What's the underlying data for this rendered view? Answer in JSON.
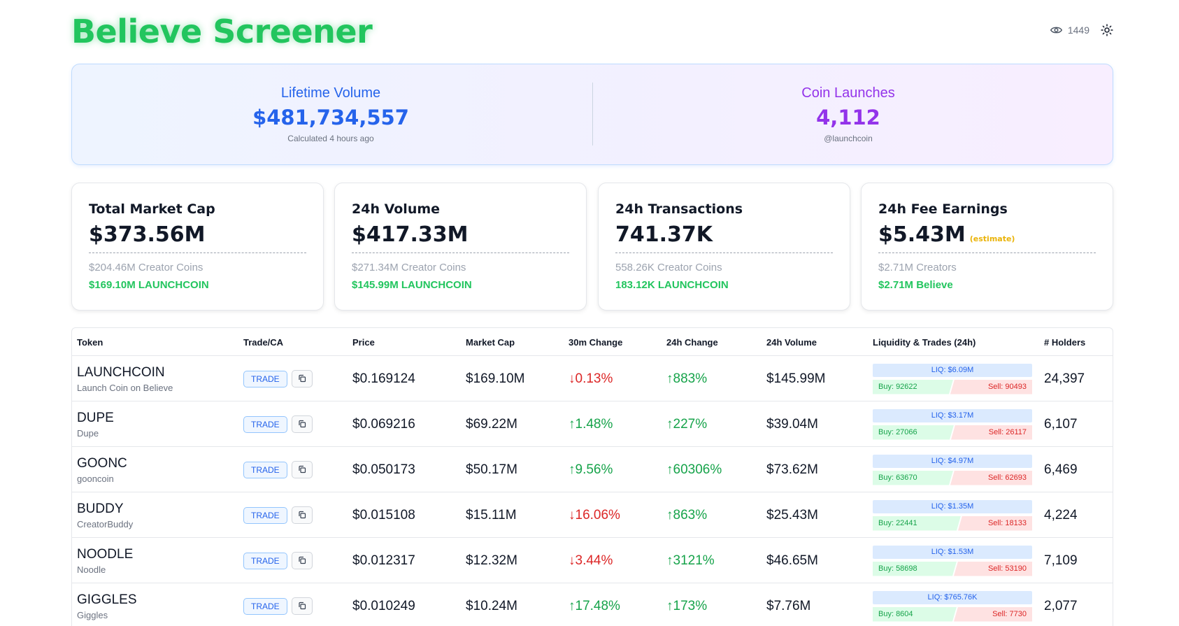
{
  "header": {
    "title": "Believe Screener",
    "view_count": "1449",
    "icons": [
      "eye-icon",
      "sun-icon"
    ]
  },
  "hero": {
    "lifetime_volume": {
      "label": "Lifetime Volume",
      "value": "$481,734,557",
      "sub": "Calculated 4 hours ago"
    },
    "coin_launches": {
      "label": "Coin Launches",
      "value": "4,112",
      "sub": "@launchcoin"
    }
  },
  "cards": [
    {
      "title": "Total Market Cap",
      "value": "$373.56M",
      "note": "",
      "sub1": "$204.46M Creator Coins",
      "sub2": "$169.10M LAUNCHCOIN"
    },
    {
      "title": "24h Volume",
      "value": "$417.33M",
      "note": "",
      "sub1": "$271.34M Creator Coins",
      "sub2": "$145.99M LAUNCHCOIN"
    },
    {
      "title": "24h Transactions",
      "value": "741.37K",
      "note": "",
      "sub1": "558.26K Creator Coins",
      "sub2": "183.12K LAUNCHCOIN"
    },
    {
      "title": "24h Fee Earnings",
      "value": "$5.43M",
      "note": "(estimate)",
      "sub1": "$2.71M Creators",
      "sub2": "$2.71M Believe"
    }
  ],
  "table": {
    "headers": {
      "token": "Token",
      "trade": "Trade/CA",
      "price": "Price",
      "mcap": "Market Cap",
      "ch30m": "30m Change",
      "ch24h": "24h Change",
      "vol24h": "24h Volume",
      "liq": "Liquidity & Trades (24h)",
      "holders": "# Holders"
    },
    "trade_label": "TRADE",
    "rows": [
      {
        "symbol": "LAUNCHCOIN",
        "name": "Launch Coin on Believe",
        "price": "$0.169124",
        "mcap": "$169.10M",
        "ch30m": "↓0.13%",
        "ch30m_dir": "down",
        "ch24h": "↑883%",
        "ch24h_dir": "up",
        "vol24h": "$145.99M",
        "liq": "LIQ: $6.09M",
        "buy": "Buy: 92622",
        "sell": "Sell: 90493",
        "buy_share": 0.506,
        "holders": "24,397"
      },
      {
        "symbol": "DUPE",
        "name": "Dupe",
        "price": "$0.069216",
        "mcap": "$69.22M",
        "ch30m": "↑1.48%",
        "ch30m_dir": "up",
        "ch24h": "↑227%",
        "ch24h_dir": "up",
        "vol24h": "$39.04M",
        "liq": "LIQ: $3.17M",
        "buy": "Buy: 27066",
        "sell": "Sell: 26117",
        "buy_share": 0.509,
        "holders": "6,107"
      },
      {
        "symbol": "GOONC",
        "name": "gooncoin",
        "price": "$0.050173",
        "mcap": "$50.17M",
        "ch30m": "↑9.56%",
        "ch30m_dir": "up",
        "ch24h": "↑60306%",
        "ch24h_dir": "up",
        "vol24h": "$73.62M",
        "liq": "LIQ: $4.97M",
        "buy": "Buy: 63670",
        "sell": "Sell: 62693",
        "buy_share": 0.504,
        "holders": "6,469"
      },
      {
        "symbol": "BUDDY",
        "name": "CreatorBuddy",
        "price": "$0.015108",
        "mcap": "$15.11M",
        "ch30m": "↓16.06%",
        "ch30m_dir": "down",
        "ch24h": "↑863%",
        "ch24h_dir": "up",
        "vol24h": "$25.43M",
        "liq": "LIQ: $1.35M",
        "buy": "Buy: 22441",
        "sell": "Sell: 18133",
        "buy_share": 0.553,
        "holders": "4,224"
      },
      {
        "symbol": "NOODLE",
        "name": "Noodle",
        "price": "$0.012317",
        "mcap": "$12.32M",
        "ch30m": "↓3.44%",
        "ch30m_dir": "down",
        "ch24h": "↑3121%",
        "ch24h_dir": "up",
        "vol24h": "$46.65M",
        "liq": "LIQ: $1.53M",
        "buy": "Buy: 58698",
        "sell": "Sell: 53190",
        "buy_share": 0.525,
        "holders": "7,109"
      },
      {
        "symbol": "GIGGLES",
        "name": "Giggles",
        "price": "$0.010249",
        "mcap": "$10.24M",
        "ch30m": "↑17.48%",
        "ch30m_dir": "up",
        "ch24h": "↑173%",
        "ch24h_dir": "up",
        "vol24h": "$7.76M",
        "liq": "LIQ: $765.76K",
        "buy": "Buy: 8604",
        "sell": "Sell: 7730",
        "buy_share": 0.527,
        "holders": "2,077"
      }
    ]
  },
  "colors": {
    "brand": "#22c55e",
    "accent_blue": "#2563eb",
    "accent_purple": "#9333ea",
    "up": "#16a34a",
    "down": "#dc2626",
    "estimate": "#eab308"
  }
}
